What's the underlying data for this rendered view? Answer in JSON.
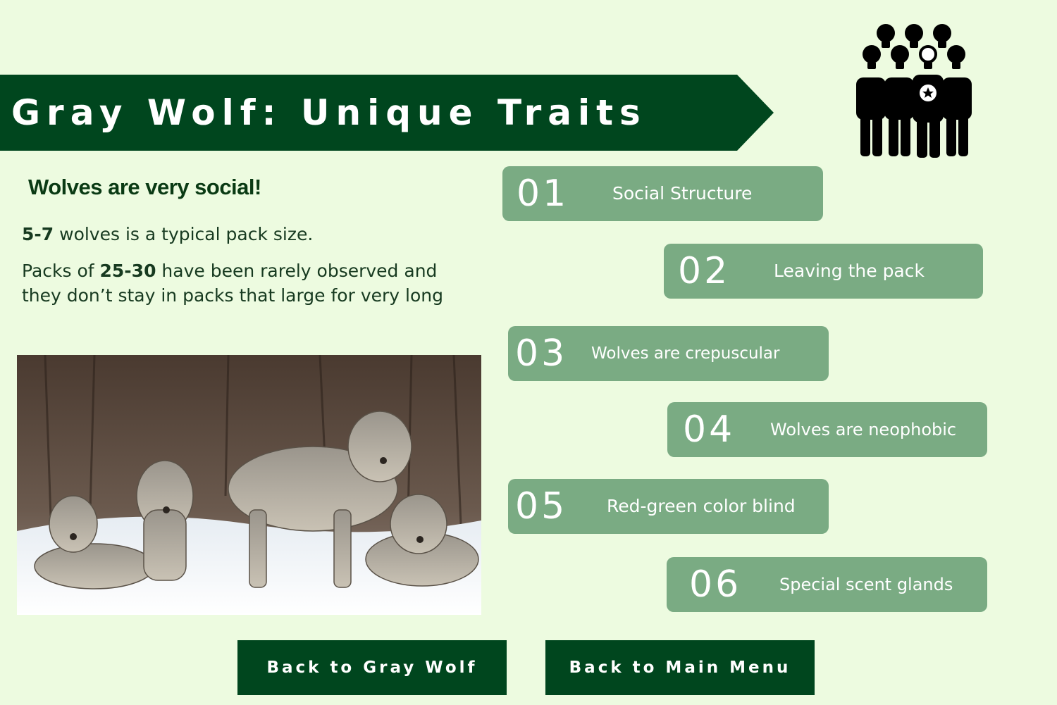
{
  "header": {
    "title": "Gray Wolf: Unique Traits"
  },
  "icons": {
    "team": "team-lightbulb-icon"
  },
  "content": {
    "lead": "Wolves are very social!",
    "para1": {
      "bold": "5-7",
      "rest": " wolves is a typical pack size."
    },
    "para2": {
      "pre": "Packs of ",
      "bold": "25-30",
      "post": " have been rarely observed and",
      "line2": "they don’t stay in packs that large for very long"
    },
    "photo_name": "gray-wolf-pack-photo"
  },
  "traits": [
    {
      "num": "01",
      "label": "Social Structure"
    },
    {
      "num": "02",
      "label": "Leaving the pack"
    },
    {
      "num": "03",
      "label": "Wolves are crepuscular"
    },
    {
      "num": "04",
      "label": "Wolves are neophobic"
    },
    {
      "num": "05",
      "label": "Red-green color blind"
    },
    {
      "num": "06",
      "label": "Special scent glands"
    }
  ],
  "nav": {
    "back_gray_wolf": "Back to Gray Wolf",
    "back_main_menu": "Back to Main Menu"
  },
  "colors": {
    "background": "#edfbe0",
    "banner": "#00461e",
    "trait_box": "#7aab83",
    "button": "#00461e"
  }
}
